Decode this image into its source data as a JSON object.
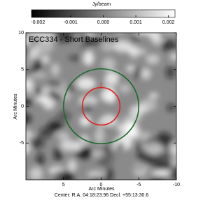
{
  "chart_data": {
    "type": "image",
    "title": "ECC334 - Short Baselines",
    "colorbar_label": "Jy/beam",
    "clim": [
      -0.0022,
      0.0022
    ],
    "cticks": [
      -0.002,
      -0.001,
      {
        "value": 0,
        "label": "0.000"
      },
      0.001,
      0.002
    ],
    "xlabel": "Arc Minutes",
    "ylabel": "Arc Minutes",
    "xlim": [
      10,
      -10
    ],
    "xticks": [
      5,
      0,
      -5,
      -10
    ],
    "ylim": [
      -10,
      10
    ],
    "yticks": [
      -5,
      0,
      5,
      10
    ],
    "footer": "Center:  R.A. 04:18:23.96   Decl. +55:13:30.6",
    "circles": [
      {
        "label": "1",
        "color": "#e0201c",
        "x": 0,
        "y": 0,
        "radius": 2.5
      },
      {
        "color": "#1a6b2a",
        "x": 0,
        "y": 0,
        "radius": 5
      }
    ]
  }
}
